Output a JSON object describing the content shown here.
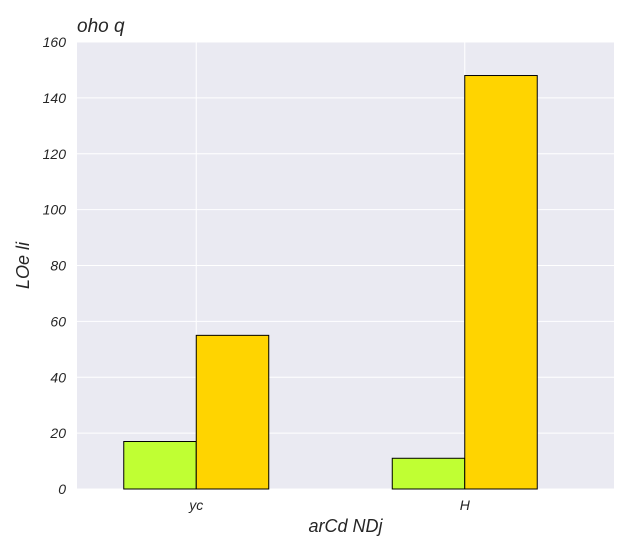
{
  "chart_data": {
    "type": "bar",
    "title": "oho q",
    "xlabel": "arCd NDj",
    "ylabel": "LOe  li",
    "categories": [
      "yc",
      "H"
    ],
    "series": [
      {
        "values": [
          17,
          11
        ],
        "color": "#c0ff33"
      },
      {
        "values": [
          55,
          148
        ],
        "color": "#ffd400"
      }
    ],
    "ylim": [
      0,
      160
    ],
    "yticks": [
      0,
      20,
      40,
      60,
      80,
      100,
      120,
      140,
      160
    ],
    "grid": true,
    "background": "#eaeaf2",
    "gridColor": "#ffffff"
  }
}
